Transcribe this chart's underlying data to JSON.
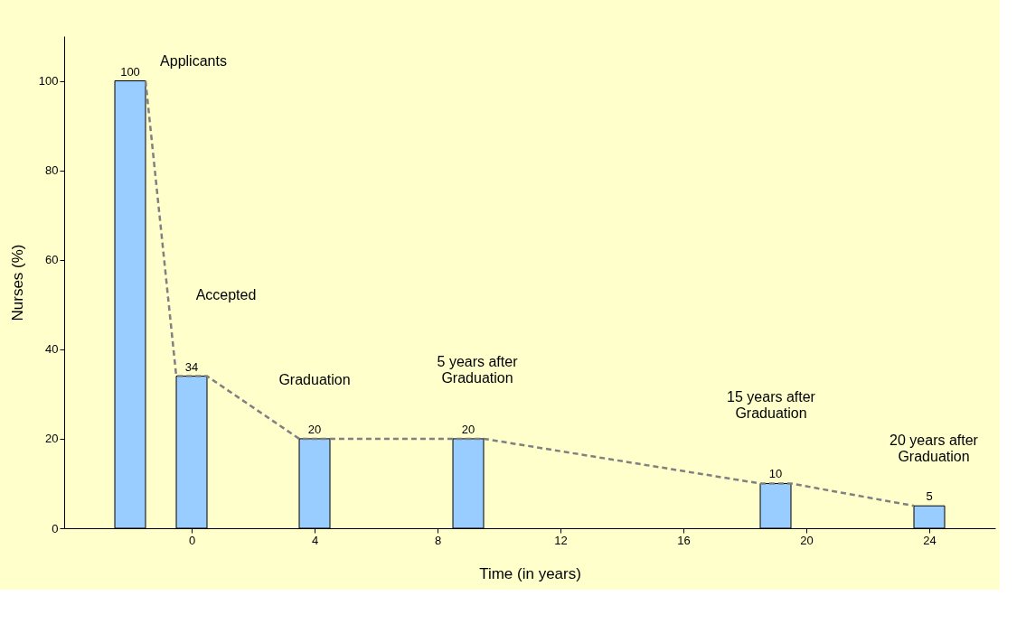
{
  "chart_data": {
    "type": "bar",
    "xlabel": "Time (in years)",
    "ylabel": "Nurses (%)",
    "x": [
      -2,
      0,
      4,
      9,
      19,
      24
    ],
    "xlim": [
      -4,
      26
    ],
    "xticks": [
      0,
      4,
      8,
      12,
      16,
      20,
      24
    ],
    "ylim": [
      0,
      110
    ],
    "yticks": [
      0,
      20,
      40,
      60,
      80,
      100
    ],
    "grid": false,
    "series": [
      {
        "color": "#99ccff",
        "values": [
          100,
          34,
          20,
          20,
          10,
          5
        ],
        "value_labels": [
          "100",
          "34",
          "20",
          "20",
          "10",
          "5"
        ]
      },
      {
        "type": "line",
        "color": "#808080",
        "line_style": "dashed",
        "marker": "none",
        "x": [
          -1.5,
          -0.5,
          0.5,
          3.5,
          4.5,
          8.5,
          9.5,
          18.5,
          19.5,
          23.5
        ],
        "values": [
          100,
          34,
          34,
          20,
          20,
          20,
          20,
          10,
          10,
          5
        ]
      }
    ],
    "annotations": [
      "Applicants",
      "Accepted",
      "Graduation",
      "5 years after\nGraduation",
      "15 years after\nGraduation",
      "20 years after\nGraduation"
    ]
  }
}
